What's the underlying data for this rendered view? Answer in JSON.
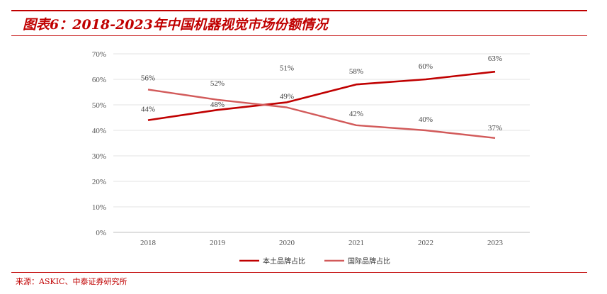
{
  "title": "图表6：2018-2023年中国机器视觉市场份额情况",
  "source": "来源：ASKIC、中泰证券研究所",
  "chart_data": {
    "type": "line",
    "categories": [
      "2018",
      "2019",
      "2020",
      "2021",
      "2022",
      "2023"
    ],
    "series": [
      {
        "name": "本土品牌占比",
        "values": [
          44,
          48,
          51,
          58,
          60,
          63
        ],
        "labels": [
          "44%",
          "48%",
          "51%",
          "58%",
          "60%",
          "63%"
        ],
        "color": "#c00000"
      },
      {
        "name": "国际品牌占比",
        "values": [
          56,
          52,
          49,
          42,
          40,
          37
        ],
        "labels": [
          "56%",
          "52%",
          "49%",
          "42%",
          "40%",
          "37%"
        ],
        "color": "#d25a5a"
      }
    ],
    "y_ticks": [
      "0%",
      "10%",
      "20%",
      "30%",
      "40%",
      "50%",
      "60%",
      "70%"
    ],
    "ylim": [
      0,
      70
    ],
    "grid": true,
    "legend": "bottom-center"
  }
}
